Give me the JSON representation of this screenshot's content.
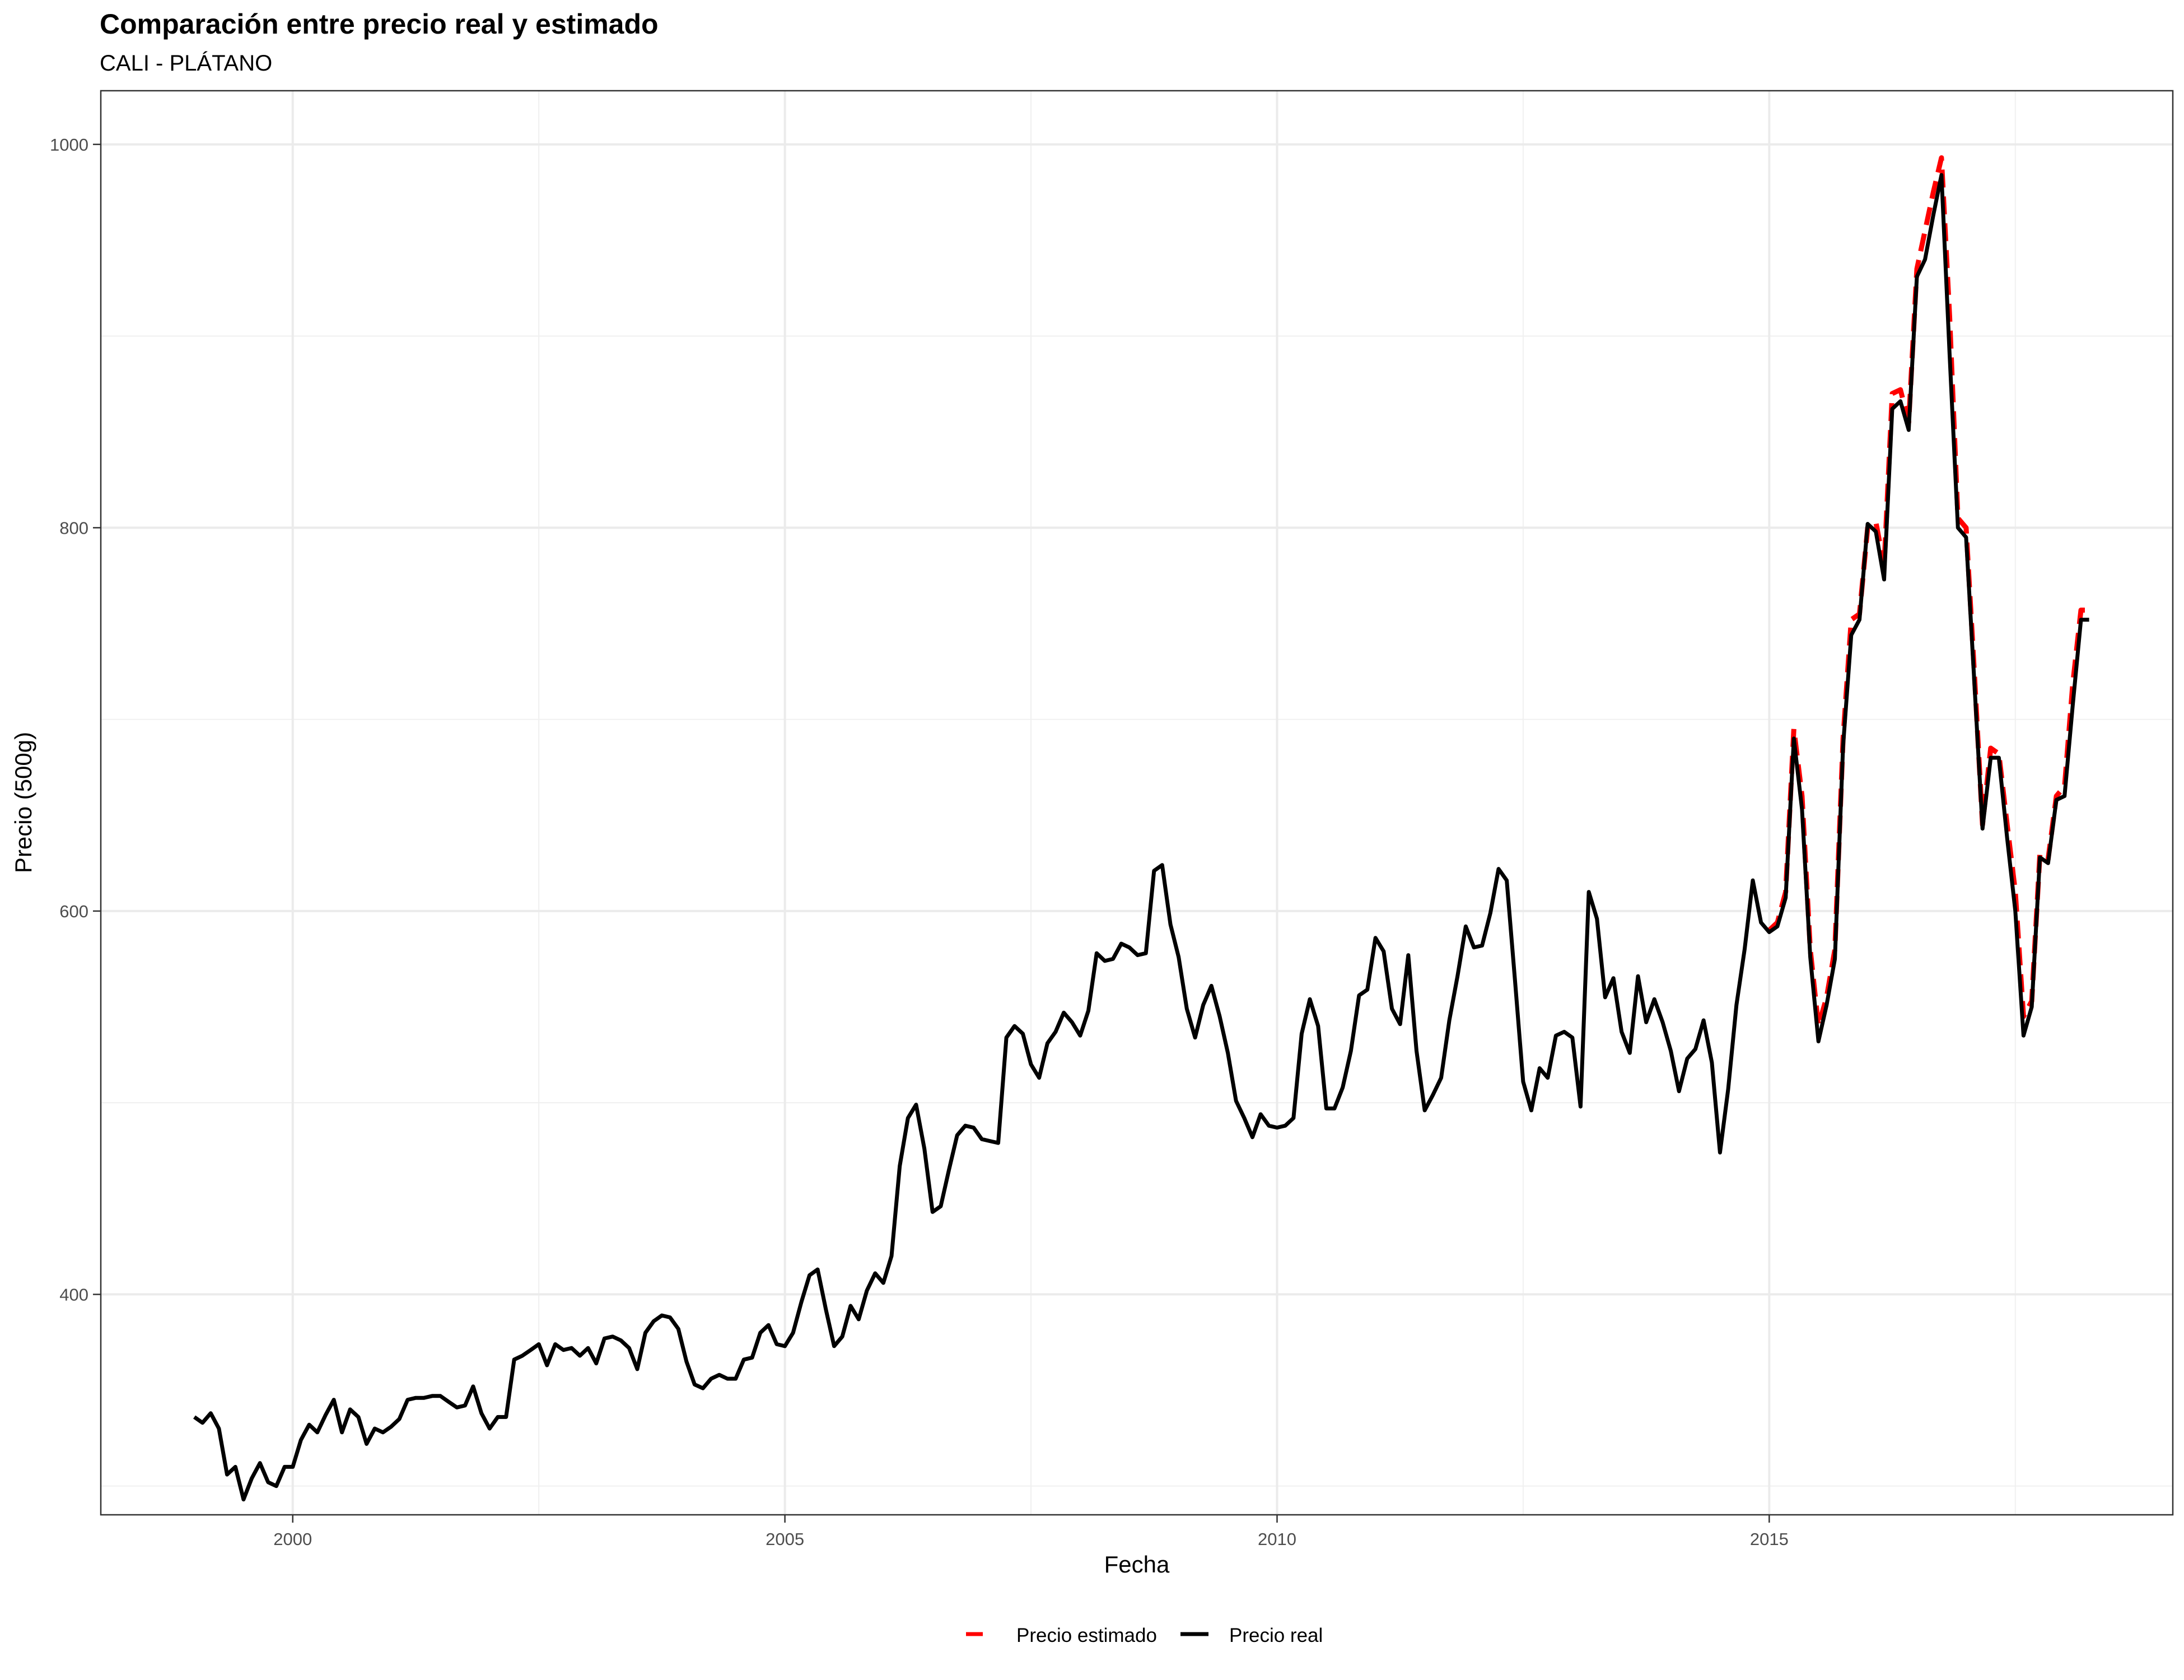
{
  "chart_data": {
    "type": "line",
    "title": "Comparación entre precio real y estimado",
    "subtitle": "CALI - PLÁTANO",
    "xlabel": "Fecha",
    "ylabel": "Precio (500g)",
    "xlim": [
      1998.05,
      2019.1
    ],
    "ylim": [
      285,
      1028
    ],
    "x_ticks": [
      2000,
      2005,
      2010,
      2015
    ],
    "y_ticks": [
      400,
      600,
      800,
      1000
    ],
    "grid": true,
    "legend_position": "bottom",
    "series": [
      {
        "name": "Precio estimado",
        "color": "#ff0000",
        "dash": "dashed",
        "x": [
          2015.0,
          2015.083,
          2015.167,
          2015.25,
          2015.333,
          2015.417,
          2015.5,
          2015.583,
          2015.667,
          2015.75,
          2015.833,
          2015.917,
          2016.0,
          2016.083,
          2016.167,
          2016.25,
          2016.333,
          2016.417,
          2016.5,
          2016.583,
          2016.667,
          2016.75,
          2016.833,
          2016.917,
          2017.0,
          2017.083,
          2017.167,
          2017.25,
          2017.333,
          2017.417,
          2017.5,
          2017.583,
          2017.667,
          2017.75,
          2017.833,
          2017.917,
          2018.0,
          2018.083,
          2018.167,
          2018.25
        ],
        "values": [
          590,
          594,
          610,
          695,
          660,
          580,
          540,
          555,
          580,
          690,
          752,
          755,
          800,
          803,
          780,
          870,
          872,
          855,
          935,
          955,
          975,
          993,
          910,
          805,
          800,
          725,
          645,
          685,
          682,
          645,
          610,
          545,
          553,
          630,
          627,
          660,
          665,
          718,
          757,
          757
        ]
      },
      {
        "name": "Precio real",
        "color": "#000000",
        "dash": "solid",
        "x": [
          1999.0,
          1999.083,
          1999.167,
          1999.25,
          1999.333,
          1999.417,
          1999.5,
          1999.583,
          1999.667,
          1999.75,
          1999.833,
          1999.917,
          2000.0,
          2000.083,
          2000.167,
          2000.25,
          2000.333,
          2000.417,
          2000.5,
          2000.583,
          2000.667,
          2000.75,
          2000.833,
          2000.917,
          2001.0,
          2001.083,
          2001.167,
          2001.25,
          2001.333,
          2001.417,
          2001.5,
          2001.583,
          2001.667,
          2001.75,
          2001.833,
          2001.917,
          2002.0,
          2002.083,
          2002.167,
          2002.25,
          2002.333,
          2002.417,
          2002.5,
          2002.583,
          2002.667,
          2002.75,
          2002.833,
          2002.917,
          2003.0,
          2003.083,
          2003.167,
          2003.25,
          2003.333,
          2003.417,
          2003.5,
          2003.583,
          2003.667,
          2003.75,
          2003.833,
          2003.917,
          2004.0,
          2004.083,
          2004.167,
          2004.25,
          2004.333,
          2004.417,
          2004.5,
          2004.583,
          2004.667,
          2004.75,
          2004.833,
          2004.917,
          2005.0,
          2005.083,
          2005.167,
          2005.25,
          2005.333,
          2005.417,
          2005.5,
          2005.583,
          2005.667,
          2005.75,
          2005.833,
          2005.917,
          2006.0,
          2006.083,
          2006.167,
          2006.25,
          2006.333,
          2006.417,
          2006.5,
          2006.583,
          2006.667,
          2006.75,
          2006.833,
          2006.917,
          2007.0,
          2007.083,
          2007.167,
          2007.25,
          2007.333,
          2007.417,
          2007.5,
          2007.583,
          2007.667,
          2007.75,
          2007.833,
          2007.917,
          2008.0,
          2008.083,
          2008.167,
          2008.25,
          2008.333,
          2008.417,
          2008.5,
          2008.583,
          2008.667,
          2008.75,
          2008.833,
          2008.917,
          2009.0,
          2009.083,
          2009.167,
          2009.25,
          2009.333,
          2009.417,
          2009.5,
          2009.583,
          2009.667,
          2009.75,
          2009.833,
          2009.917,
          2010.0,
          2010.083,
          2010.167,
          2010.25,
          2010.333,
          2010.417,
          2010.5,
          2010.583,
          2010.667,
          2010.75,
          2010.833,
          2010.917,
          2011.0,
          2011.083,
          2011.167,
          2011.25,
          2011.333,
          2011.417,
          2011.5,
          2011.583,
          2011.667,
          2011.75,
          2011.833,
          2011.917,
          2012.0,
          2012.083,
          2012.167,
          2012.25,
          2012.333,
          2012.417,
          2012.5,
          2012.583,
          2012.667,
          2012.75,
          2012.833,
          2012.917,
          2013.0,
          2013.083,
          2013.167,
          2013.25,
          2013.333,
          2013.417,
          2013.5,
          2013.583,
          2013.667,
          2013.75,
          2013.833,
          2013.917,
          2014.0,
          2014.083,
          2014.167,
          2014.25,
          2014.333,
          2014.417,
          2014.5,
          2014.583,
          2014.667,
          2014.75,
          2014.833,
          2014.917,
          2015.0,
          2015.083,
          2015.167,
          2015.25,
          2015.333,
          2015.417,
          2015.5,
          2015.583,
          2015.667,
          2015.75,
          2015.833,
          2015.917,
          2016.0,
          2016.083,
          2016.167,
          2016.25,
          2016.333,
          2016.417,
          2016.5,
          2016.583,
          2016.667,
          2016.75,
          2016.833,
          2016.917,
          2017.0,
          2017.083,
          2017.167,
          2017.25,
          2017.333,
          2017.417,
          2017.5,
          2017.583,
          2017.667,
          2017.75,
          2017.833,
          2017.917,
          2018.0,
          2018.083,
          2018.167,
          2018.25
        ],
        "values": [
          336,
          333,
          338,
          330,
          306,
          310,
          293,
          304,
          312,
          302,
          300,
          310,
          310,
          324,
          332,
          328,
          337,
          345,
          328,
          340,
          336,
          322,
          330,
          328,
          331,
          335,
          345,
          346,
          346,
          347,
          347,
          344,
          341,
          342,
          352,
          338,
          330,
          336,
          336,
          366,
          368,
          371,
          374,
          363,
          374,
          371,
          372,
          368,
          372,
          364,
          377,
          378,
          376,
          372,
          361,
          380,
          386,
          389,
          388,
          382,
          365,
          353,
          351,
          356,
          358,
          356,
          356,
          366,
          367,
          380,
          384,
          374,
          373,
          380,
          396,
          410,
          413,
          392,
          373,
          378,
          394,
          387,
          402,
          411,
          406,
          420,
          467,
          492,
          499,
          476,
          443,
          446,
          465,
          483,
          488,
          487,
          481,
          480,
          479,
          534,
          540,
          536,
          520,
          513,
          531,
          537,
          547,
          542,
          535,
          548,
          578,
          574,
          575,
          583,
          581,
          577,
          578,
          621,
          624,
          593,
          576,
          549,
          534,
          551,
          561,
          545,
          526,
          501,
          492,
          482,
          494,
          488,
          487,
          488,
          492,
          536,
          554,
          540,
          497,
          497,
          508,
          527,
          556,
          559,
          586,
          579,
          549,
          541,
          577,
          527,
          496,
          504,
          513,
          543,
          566,
          592,
          581,
          582,
          599,
          622,
          616,
          564,
          511,
          496,
          518,
          513,
          535,
          537,
          534,
          498,
          610,
          596,
          555,
          565,
          537,
          526,
          566,
          542,
          554,
          542,
          527,
          506,
          523,
          528,
          543,
          521,
          474,
          507,
          551,
          580,
          616,
          594,
          589,
          592,
          607,
          690,
          653,
          576,
          532,
          551,
          575,
          686,
          744,
          752,
          802,
          798,
          773,
          862,
          866,
          851,
          931,
          940,
          963,
          984,
          890,
          800,
          795,
          720,
          643,
          680,
          680,
          638,
          600,
          535,
          550,
          628,
          625,
          658,
          660,
          707,
          752,
          752
        ]
      }
    ]
  }
}
